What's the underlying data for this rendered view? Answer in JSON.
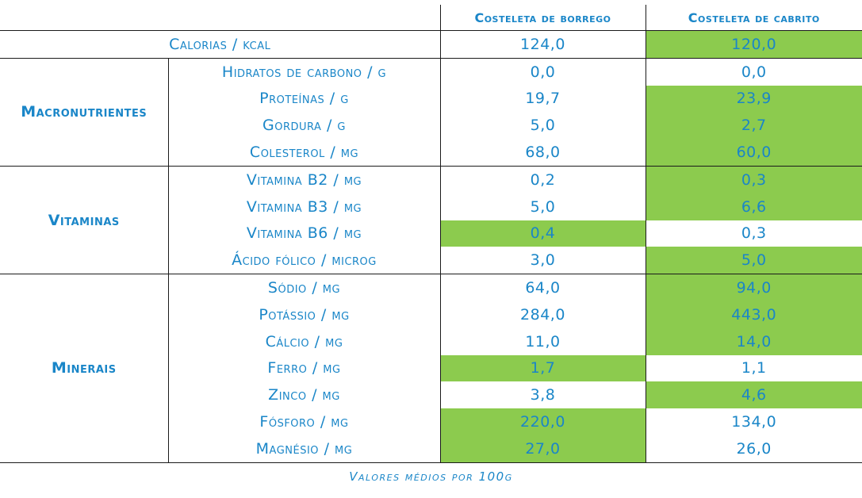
{
  "header": {
    "col1": "Costeleta de borrego",
    "col2": "Costeleta de cabrito"
  },
  "colors": {
    "text": "#1a86c8",
    "highlight": "#8ccb4e",
    "rule": "#1a1a1a"
  },
  "calories": {
    "label": "Calorias / kcal",
    "v1": "124,0",
    "v2": "120,0",
    "highlight": "v2"
  },
  "groups": {
    "macronutrientes": "Macronutrientes",
    "vitaminas": "Vitaminas",
    "minerais": "Minerais"
  },
  "rows": [
    {
      "label": "Hidratos de carbono / g",
      "v1": "0,0",
      "v2": "0,0",
      "highlight": ""
    },
    {
      "label": "Proteínas / g",
      "v1": "19,7",
      "v2": "23,9",
      "highlight": "v2"
    },
    {
      "label": "Gordura / g",
      "v1": "5,0",
      "v2": "2,7",
      "highlight": "v2"
    },
    {
      "label": "Colesterol / mg",
      "v1": "68,0",
      "v2": "60,0",
      "highlight": "v2"
    },
    {
      "label": "Vitamina B2 / mg",
      "v1": "0,2",
      "v2": "0,3",
      "highlight": "v2"
    },
    {
      "label": "Vitamina B3 / mg",
      "v1": "5,0",
      "v2": "6,6",
      "highlight": "v2"
    },
    {
      "label": "Vitamina B6 / mg",
      "v1": "0,4",
      "v2": "0,3",
      "highlight": "v1"
    },
    {
      "label": "Ácido fólico / microg",
      "v1": "3,0",
      "v2": "5,0",
      "highlight": "v2"
    },
    {
      "label": "Sódio / mg",
      "v1": "64,0",
      "v2": "94,0",
      "highlight": "v2"
    },
    {
      "label": "Potássio / mg",
      "v1": "284,0",
      "v2": "443,0",
      "highlight": "v2"
    },
    {
      "label": "Cálcio / mg",
      "v1": "11,0",
      "v2": "14,0",
      "highlight": "v2"
    },
    {
      "label": "Ferro / mg",
      "v1": "1,7",
      "v2": "1,1",
      "highlight": "v1"
    },
    {
      "label": "Zinco / mg",
      "v1": "3,8",
      "v2": "4,6",
      "highlight": "v2"
    },
    {
      "label": "Fósforo / mg",
      "v1": "220,0",
      "v2": "134,0",
      "highlight": "v1"
    },
    {
      "label": "Magnésio / mg",
      "v1": "27,0",
      "v2": "26,0",
      "highlight": "v1"
    }
  ],
  "caption": "Valores médios por 100g"
}
